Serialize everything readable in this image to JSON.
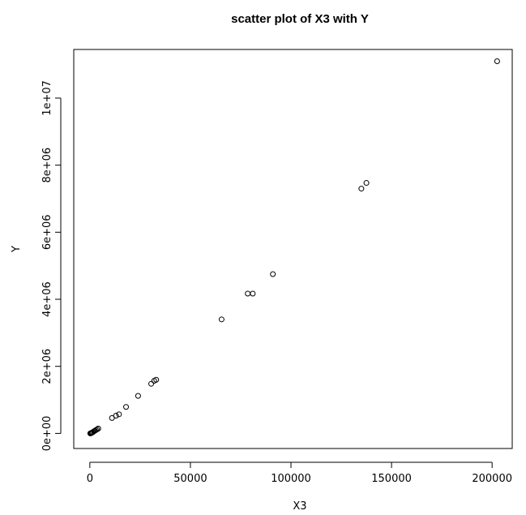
{
  "chart_data": {
    "type": "scatter",
    "title": "scatter plot of X3 with Y",
    "xlabel": "X3",
    "ylabel": "Y",
    "xlim": [
      -8000,
      210000
    ],
    "ylim": [
      -450000,
      11450000
    ],
    "xticks": [
      0,
      50000,
      100000,
      150000,
      200000
    ],
    "xtick_labels": [
      "0",
      "50000",
      "100000",
      "150000",
      "200000"
    ],
    "yticks": [
      0,
      2000000,
      4000000,
      6000000,
      8000000,
      10000000
    ],
    "ytick_labels": [
      "0e+00",
      "2e+06",
      "4e+06",
      "6e+06",
      "8e+06",
      "1e+07"
    ],
    "grid": false,
    "legend": "none",
    "marker": "open-circle",
    "points": [
      {
        "x": 200,
        "y": 0
      },
      {
        "x": 500,
        "y": 5000
      },
      {
        "x": 800,
        "y": 15000
      },
      {
        "x": 1100,
        "y": 25000
      },
      {
        "x": 1500,
        "y": 40000
      },
      {
        "x": 2000,
        "y": 60000
      },
      {
        "x": 2500,
        "y": 80000
      },
      {
        "x": 3000,
        "y": 100000
      },
      {
        "x": 3600,
        "y": 120000
      },
      {
        "x": 4200,
        "y": 145000
      },
      {
        "x": 11000,
        "y": 460000
      },
      {
        "x": 13000,
        "y": 530000
      },
      {
        "x": 14500,
        "y": 570000
      },
      {
        "x": 18000,
        "y": 790000
      },
      {
        "x": 24000,
        "y": 1120000
      },
      {
        "x": 30500,
        "y": 1480000
      },
      {
        "x": 32000,
        "y": 1570000
      },
      {
        "x": 33000,
        "y": 1600000
      },
      {
        "x": 65500,
        "y": 3400000
      },
      {
        "x": 78500,
        "y": 4170000
      },
      {
        "x": 81000,
        "y": 4170000
      },
      {
        "x": 91000,
        "y": 4750000
      },
      {
        "x": 135000,
        "y": 7300000
      },
      {
        "x": 137500,
        "y": 7470000
      },
      {
        "x": 202500,
        "y": 11100000
      }
    ]
  }
}
